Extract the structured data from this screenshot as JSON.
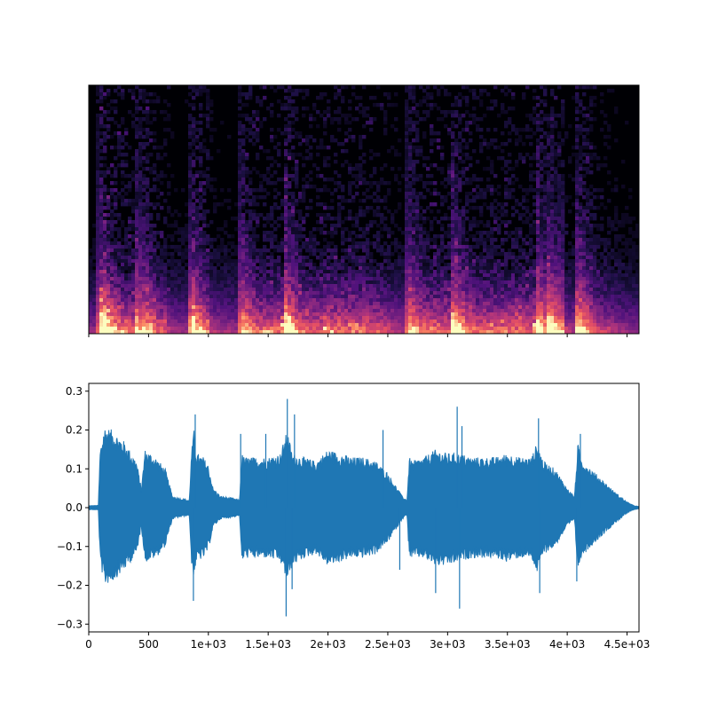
{
  "chart_data": [
    {
      "type": "heatmap",
      "title": "",
      "xlabel": "",
      "ylabel": "",
      "colormap": "magma",
      "shared_x_axis": true,
      "show_y_ticks": false,
      "note_values": "log-magnitude spectrogram; energy concentrated at low frequencies, bright bands near time 3900",
      "onsets": [
        90,
        420,
        860,
        1260,
        1640,
        2660,
        3050,
        3750,
        4090
      ],
      "xlim": [
        0,
        4600
      ]
    },
    {
      "type": "line",
      "title": "",
      "xlabel": "",
      "ylabel": "",
      "series_color": "#1f77b4",
      "xlim": [
        0,
        4600
      ],
      "ylim": [
        -0.32,
        0.32
      ],
      "xticks": [
        0,
        500,
        1000,
        1500,
        2000,
        2500,
        3000,
        3500,
        4000,
        4500
      ],
      "xtick_labels": [
        "0",
        "500",
        "1e+03",
        "1.5e+03",
        "2e+03",
        "2.5e+03",
        "3e+03",
        "3.5e+03",
        "4e+03",
        "4.5e+03"
      ],
      "yticks": [
        -0.3,
        -0.2,
        -0.1,
        0.0,
        0.1,
        0.2,
        0.3
      ],
      "ytick_labels": [
        "−0.3",
        "−0.2",
        "−0.1",
        "0.0",
        "0.1",
        "0.2",
        "0.3"
      ],
      "envelope": {
        "x": [
          0,
          80,
          95,
          130,
          200,
          300,
          400,
          440,
          470,
          560,
          640,
          700,
          760,
          840,
          860,
          880,
          900,
          960,
          1000,
          1040,
          1100,
          1200,
          1260,
          1280,
          1300,
          1400,
          1500,
          1600,
          1660,
          1700,
          1800,
          1900,
          2000,
          2100,
          2200,
          2300,
          2400,
          2500,
          2560,
          2620,
          2660,
          2680,
          2700,
          2800,
          2900,
          3000,
          3100,
          3200,
          3300,
          3400,
          3500,
          3600,
          3700,
          3750,
          3800,
          3900,
          4000,
          4060,
          4090,
          4110,
          4200,
          4300,
          4400,
          4500,
          4560,
          4600
        ],
        "upper": [
          0.005,
          0.006,
          0.15,
          0.21,
          0.2,
          0.17,
          0.12,
          0.05,
          0.15,
          0.13,
          0.1,
          0.03,
          0.025,
          0.02,
          0.15,
          0.2,
          0.14,
          0.13,
          0.11,
          0.05,
          0.03,
          0.025,
          0.02,
          0.14,
          0.13,
          0.13,
          0.13,
          0.14,
          0.2,
          0.14,
          0.13,
          0.12,
          0.15,
          0.14,
          0.13,
          0.13,
          0.12,
          0.09,
          0.06,
          0.03,
          0.02,
          0.13,
          0.12,
          0.13,
          0.15,
          0.14,
          0.14,
          0.13,
          0.13,
          0.13,
          0.14,
          0.13,
          0.13,
          0.17,
          0.12,
          0.1,
          0.05,
          0.03,
          0.17,
          0.13,
          0.1,
          0.07,
          0.04,
          0.015,
          0.005,
          0.003
        ],
        "lower": [
          -0.005,
          -0.006,
          -0.14,
          -0.2,
          -0.19,
          -0.16,
          -0.12,
          -0.05,
          -0.14,
          -0.13,
          -0.1,
          -0.03,
          -0.025,
          -0.02,
          -0.15,
          -0.18,
          -0.14,
          -0.13,
          -0.11,
          -0.05,
          -0.03,
          -0.025,
          -0.02,
          -0.14,
          -0.13,
          -0.13,
          -0.13,
          -0.14,
          -0.19,
          -0.15,
          -0.13,
          -0.12,
          -0.15,
          -0.14,
          -0.13,
          -0.13,
          -0.12,
          -0.09,
          -0.06,
          -0.03,
          -0.02,
          -0.13,
          -0.13,
          -0.13,
          -0.15,
          -0.15,
          -0.14,
          -0.13,
          -0.13,
          -0.13,
          -0.14,
          -0.13,
          -0.13,
          -0.17,
          -0.12,
          -0.1,
          -0.05,
          -0.03,
          -0.17,
          -0.13,
          -0.1,
          -0.07,
          -0.04,
          -0.015,
          -0.005,
          -0.003
        ]
      },
      "spikes": [
        {
          "x": 890,
          "y": 0.24
        },
        {
          "x": 875,
          "y": -0.24
        },
        {
          "x": 1270,
          "y": 0.19
        },
        {
          "x": 1480,
          "y": 0.19
        },
        {
          "x": 1660,
          "y": 0.28
        },
        {
          "x": 1650,
          "y": -0.28
        },
        {
          "x": 1720,
          "y": 0.24
        },
        {
          "x": 1700,
          "y": -0.21
        },
        {
          "x": 2460,
          "y": 0.2
        },
        {
          "x": 2600,
          "y": -0.16
        },
        {
          "x": 2900,
          "y": -0.22
        },
        {
          "x": 3080,
          "y": 0.26
        },
        {
          "x": 3100,
          "y": -0.26
        },
        {
          "x": 3120,
          "y": 0.21
        },
        {
          "x": 3760,
          "y": 0.23
        },
        {
          "x": 3770,
          "y": -0.22
        },
        {
          "x": 4110,
          "y": 0.19
        },
        {
          "x": 4080,
          "y": -0.19
        }
      ]
    }
  ]
}
